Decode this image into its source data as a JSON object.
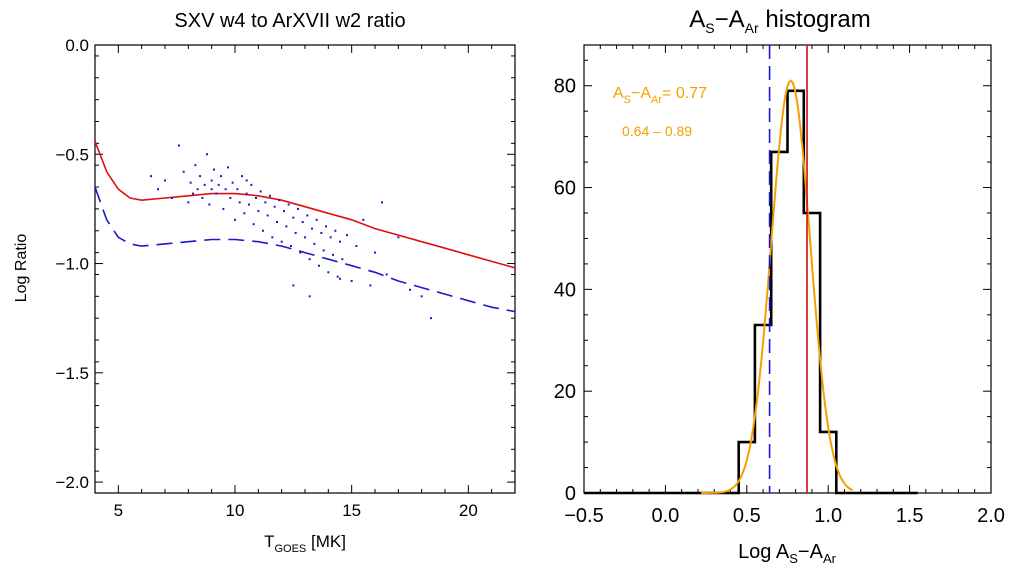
{
  "chart_data": [
    {
      "type": "scatter",
      "title": "SXV w4 to ArXVII w2 ratio",
      "xlabel": {
        "main": "T",
        "sub": "GOES",
        "unit": " [MK]"
      },
      "ylabel": "Log Ratio",
      "xlim": [
        4,
        22
      ],
      "ylim": [
        -2.05,
        0.0
      ],
      "xticks": [
        5,
        10,
        15,
        20
      ],
      "yticks": [
        0.0,
        -0.5,
        -1.0,
        -1.5,
        -2.0
      ],
      "ytick_labels": [
        "0.0",
        "−0.5",
        "−1.0",
        "−1.5",
        "−2.0"
      ],
      "grid": false,
      "colors": {
        "points": "#1a1acc",
        "solid_curve": "#e01010",
        "dashed_curve": "#1a1acc"
      },
      "series": [
        {
          "style": "solid",
          "color": "#e01010",
          "points": [
            [
              4.0,
              -0.44
            ],
            [
              4.5,
              -0.58
            ],
            [
              5.0,
              -0.66
            ],
            [
              5.5,
              -0.7
            ],
            [
              6.0,
              -0.71
            ],
            [
              7.0,
              -0.7
            ],
            [
              8.0,
              -0.69
            ],
            [
              9.0,
              -0.68
            ],
            [
              10.0,
              -0.68
            ],
            [
              11.0,
              -0.69
            ],
            [
              12.0,
              -0.71
            ],
            [
              13.0,
              -0.74
            ],
            [
              14.0,
              -0.77
            ],
            [
              15.0,
              -0.8
            ],
            [
              16.0,
              -0.84
            ],
            [
              17.0,
              -0.87
            ],
            [
              18.0,
              -0.9
            ],
            [
              19.0,
              -0.93
            ],
            [
              20.0,
              -0.96
            ],
            [
              21.0,
              -0.99
            ],
            [
              22.0,
              -1.02
            ]
          ]
        },
        {
          "style": "dashed",
          "color": "#1a1acc",
          "points": [
            [
              4.0,
              -0.65
            ],
            [
              4.5,
              -0.8
            ],
            [
              5.0,
              -0.88
            ],
            [
              5.5,
              -0.91
            ],
            [
              6.0,
              -0.92
            ],
            [
              7.0,
              -0.91
            ],
            [
              8.0,
              -0.9
            ],
            [
              9.0,
              -0.89
            ],
            [
              10.0,
              -0.89
            ],
            [
              11.0,
              -0.9
            ],
            [
              12.0,
              -0.92
            ],
            [
              13.0,
              -0.95
            ],
            [
              14.0,
              -0.98
            ],
            [
              15.0,
              -1.01
            ],
            [
              16.0,
              -1.04
            ],
            [
              17.0,
              -1.08
            ],
            [
              18.0,
              -1.11
            ],
            [
              19.0,
              -1.14
            ],
            [
              20.0,
              -1.17
            ],
            [
              21.0,
              -1.2
            ],
            [
              22.0,
              -1.22
            ]
          ]
        }
      ],
      "scatter": [
        [
          6.4,
          -0.6
        ],
        [
          6.7,
          -0.66
        ],
        [
          7.0,
          -0.62
        ],
        [
          7.3,
          -0.7
        ],
        [
          7.6,
          -0.46
        ],
        [
          7.8,
          -0.58
        ],
        [
          8.0,
          -0.72
        ],
        [
          8.1,
          -0.63
        ],
        [
          8.3,
          -0.55
        ],
        [
          8.4,
          -0.66
        ],
        [
          8.5,
          -0.6
        ],
        [
          8.6,
          -0.7
        ],
        [
          8.7,
          -0.64
        ],
        [
          8.8,
          -0.5
        ],
        [
          8.9,
          -0.73
        ],
        [
          9.0,
          -0.62
        ],
        [
          9.1,
          -0.57
        ],
        [
          9.2,
          -0.68
        ],
        [
          9.3,
          -0.64
        ],
        [
          9.4,
          -0.6
        ],
        [
          9.5,
          -0.75
        ],
        [
          9.6,
          -0.66
        ],
        [
          9.7,
          -0.56
        ],
        [
          9.8,
          -0.7
        ],
        [
          9.9,
          -0.63
        ],
        [
          10.0,
          -0.8
        ],
        [
          10.1,
          -0.66
        ],
        [
          10.2,
          -0.72
        ],
        [
          10.3,
          -0.6
        ],
        [
          10.4,
          -0.77
        ],
        [
          10.5,
          -0.68
        ],
        [
          10.6,
          -0.73
        ],
        [
          10.7,
          -0.64
        ],
        [
          10.8,
          -0.82
        ],
        [
          10.9,
          -0.7
        ],
        [
          11.0,
          -0.76
        ],
        [
          11.1,
          -0.67
        ],
        [
          11.2,
          -0.85
        ],
        [
          11.3,
          -0.72
        ],
        [
          11.4,
          -0.78
        ],
        [
          11.5,
          -0.69
        ],
        [
          11.6,
          -0.88
        ],
        [
          11.7,
          -0.74
        ],
        [
          11.8,
          -0.81
        ],
        [
          11.9,
          -0.71
        ],
        [
          12.0,
          -0.9
        ],
        [
          12.1,
          -0.76
        ],
        [
          12.2,
          -0.83
        ],
        [
          12.3,
          -0.73
        ],
        [
          12.4,
          -0.92
        ],
        [
          12.5,
          -0.79
        ],
        [
          12.6,
          -0.86
        ],
        [
          12.7,
          -0.75
        ],
        [
          12.8,
          -0.95
        ],
        [
          12.9,
          -0.81
        ],
        [
          13.0,
          -0.88
        ],
        [
          13.1,
          -0.78
        ],
        [
          13.2,
          -0.98
        ],
        [
          13.3,
          -0.84
        ],
        [
          13.4,
          -0.91
        ],
        [
          13.5,
          -0.8
        ],
        [
          13.6,
          -1.01
        ],
        [
          13.7,
          -0.86
        ],
        [
          13.8,
          -0.94
        ],
        [
          13.9,
          -0.83
        ],
        [
          14.0,
          -1.04
        ],
        [
          14.1,
          -0.88
        ],
        [
          14.2,
          -0.96
        ],
        [
          14.3,
          -0.85
        ],
        [
          14.4,
          -1.06
        ],
        [
          14.5,
          -0.9
        ],
        [
          14.6,
          -0.98
        ],
        [
          14.8,
          -0.87
        ],
        [
          15.0,
          -1.08
        ],
        [
          15.2,
          -0.92
        ],
        [
          15.5,
          -0.8
        ],
        [
          15.8,
          -1.1
        ],
        [
          16.0,
          -0.95
        ],
        [
          16.3,
          -0.72
        ],
        [
          16.5,
          -1.05
        ],
        [
          17.0,
          -0.88
        ],
        [
          17.5,
          -1.12
        ],
        [
          18.0,
          -1.15
        ],
        [
          18.4,
          -1.25
        ],
        [
          12.5,
          -1.1
        ],
        [
          13.2,
          -1.15
        ],
        [
          14.5,
          -1.07
        ],
        [
          9.0,
          -0.66
        ],
        [
          8.2,
          -0.68
        ],
        [
          10.5,
          -0.62
        ]
      ]
    },
    {
      "type": "bar",
      "title": {
        "a": "A",
        "a_sub": "S",
        "dash": "−A",
        "b_sub": "Ar",
        "rest": " histogram"
      },
      "xlabel": {
        "main": "Log A",
        "sub1": "S",
        "dash": "−A",
        "sub2": "Ar"
      },
      "ylabel": "",
      "xlim": [
        -0.5,
        2.0
      ],
      "ylim": [
        0,
        88
      ],
      "xticks": [
        -0.5,
        0.0,
        0.5,
        1.0,
        1.5,
        2.0
      ],
      "xtick_labels": [
        "−0.5",
        "0.0",
        "0.5",
        "1.0",
        "1.5",
        "2.0"
      ],
      "yticks": [
        0,
        20,
        40,
        60,
        80
      ],
      "grid": false,
      "histogram": {
        "color": "#000000",
        "bin_edges": [
          -0.5,
          0.45,
          0.55,
          0.65,
          0.75,
          0.85,
          0.95,
          1.05,
          1.55
        ],
        "counts": [
          0,
          10,
          33,
          67,
          79,
          55,
          12,
          0
        ]
      },
      "gaussian_fit": {
        "color": "#f5a000",
        "center": 0.77,
        "sigma": 0.12,
        "peak": 81,
        "x_range": [
          0.22,
          1.15
        ]
      },
      "vlines": [
        {
          "x": 0.64,
          "style": "dashed",
          "color": "#1a1acc"
        },
        {
          "x": 0.87,
          "style": "solid",
          "color": "#cc1010"
        }
      ],
      "annotation": {
        "color": "#f5a000",
        "line1": {
          "a": "A",
          "a_sub": "S",
          "dash": "−A",
          "b_sub": "Ar",
          "rest": "= 0.77"
        },
        "line2": "0.64 – 0.89"
      }
    }
  ]
}
